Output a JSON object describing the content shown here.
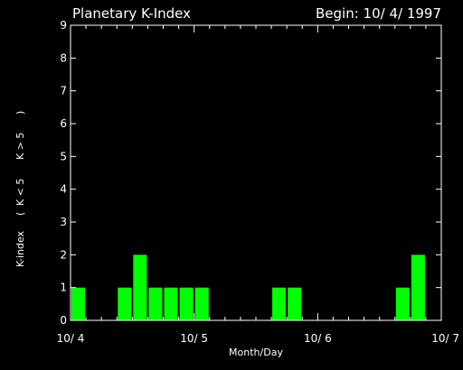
{
  "title_left": "Planetary K-Index",
  "title_right": "Begin: 10/ 4/ 1997",
  "colors": {
    "background": "#000000",
    "axes": "#ffffff",
    "bar_low": "#00ff00",
    "bar_high": "#ff0000"
  },
  "chart_data": {
    "type": "bar",
    "xlabel": "Month/Day",
    "ylabel": {
      "main": "K-index",
      "paren_open": "(",
      "low_label": "K < 5",
      "high_label": "K > 5",
      "paren_close": ")"
    },
    "ylim": [
      0,
      9
    ],
    "yticks": [
      "0",
      "1",
      "2",
      "3",
      "4",
      "5",
      "6",
      "7",
      "8",
      "9"
    ],
    "xlim_days": [
      0,
      3
    ],
    "xtick_labels": [
      "10/ 4",
      "10/ 5",
      "10/ 6",
      "10/ 7"
    ],
    "interval_hours": 3,
    "values": [
      1,
      0,
      0,
      1,
      2,
      1,
      1,
      1,
      1,
      0,
      0,
      0,
      0,
      1,
      1,
      0,
      0,
      0,
      0,
      0,
      0,
      1,
      2,
      0
    ],
    "grid": false
  }
}
